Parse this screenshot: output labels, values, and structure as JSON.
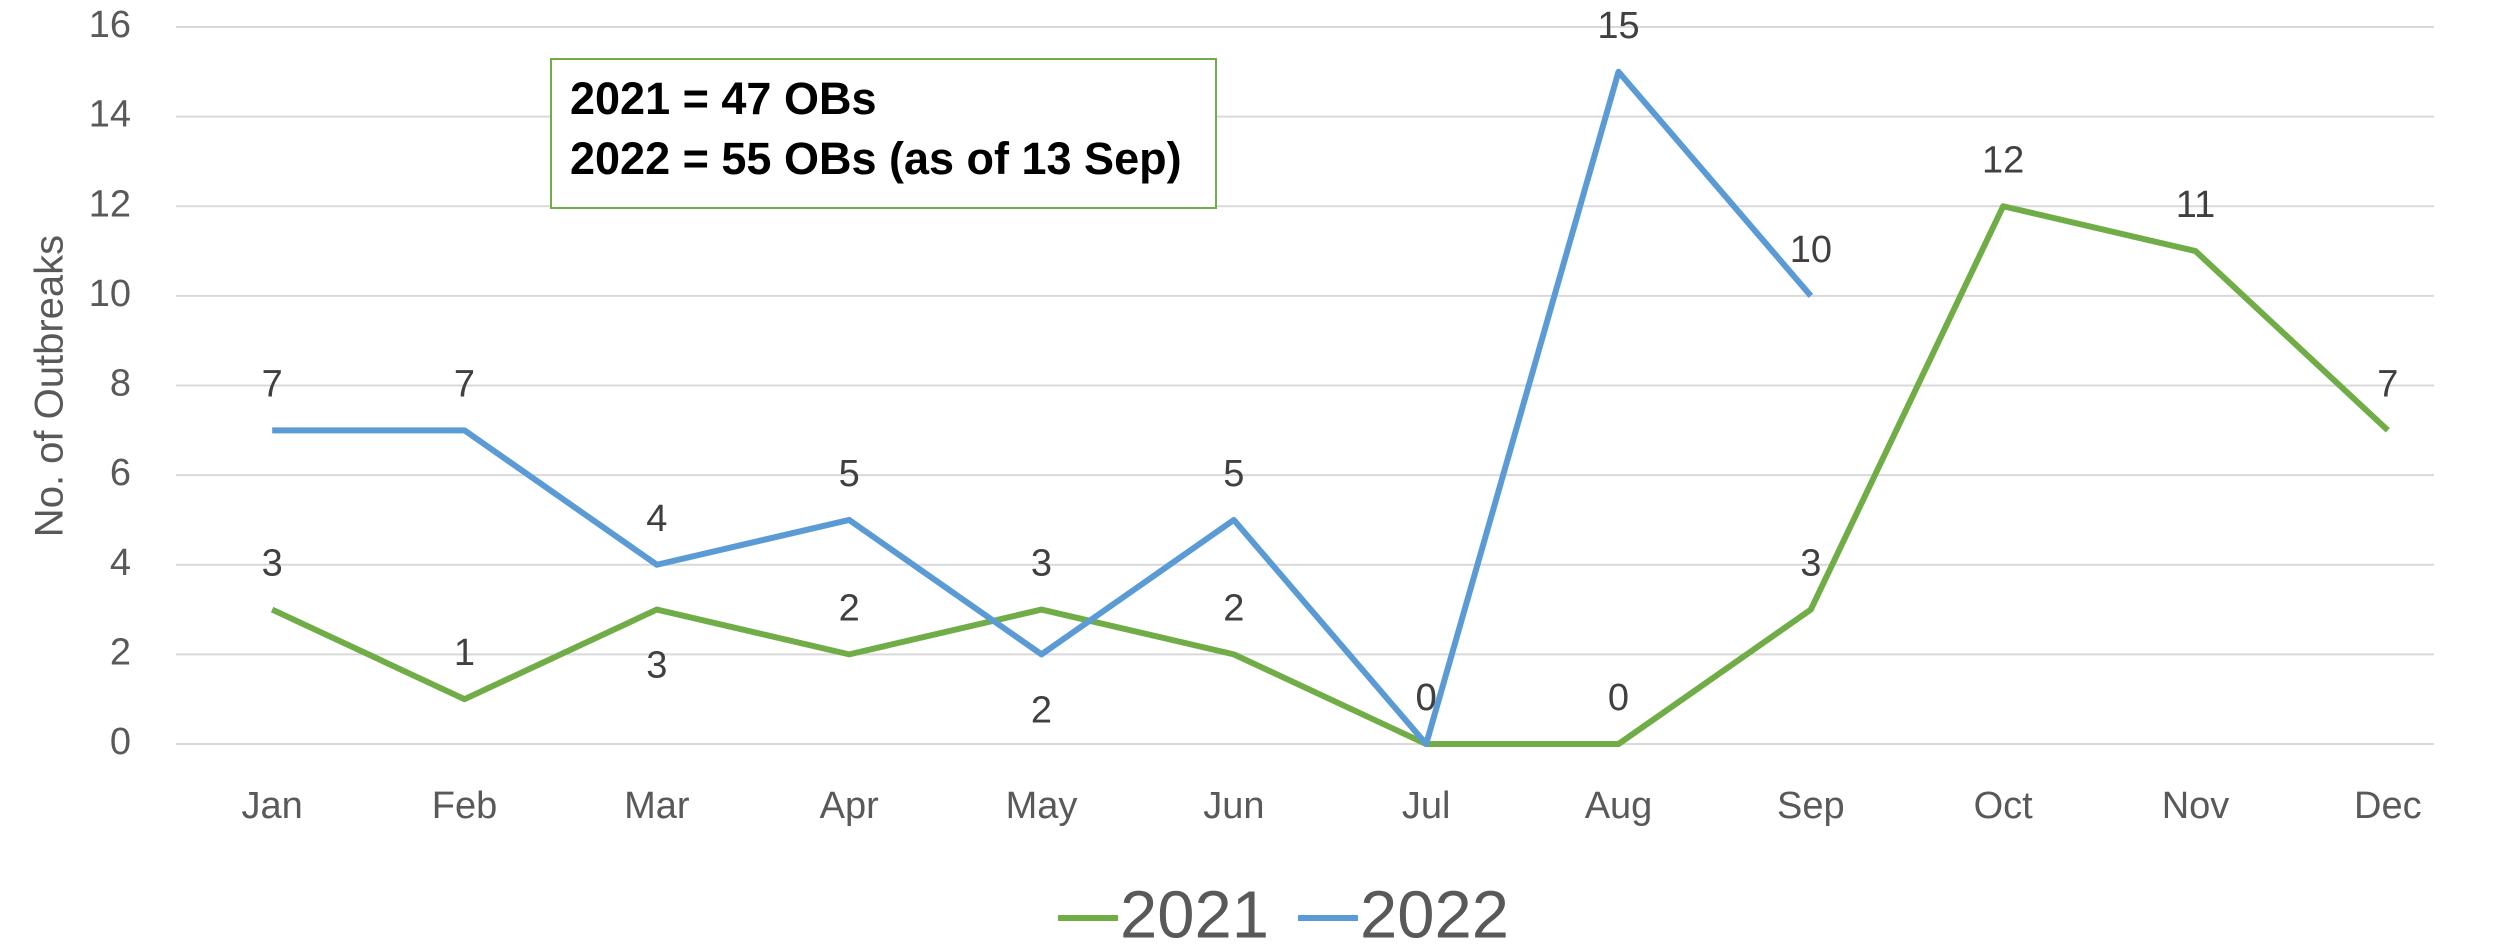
{
  "chart_data": {
    "type": "line",
    "y_label": "No. of Outbreaks",
    "annotations": [
      "2021 = 47 OBs",
      "2022 = 55 OBs (as of 13 Sep)"
    ],
    "categories": [
      "Jan",
      "Feb",
      "Mar",
      "Apr",
      "May",
      "Jun",
      "Jul",
      "Aug",
      "Sep",
      "Oct",
      "Nov",
      "Dec"
    ],
    "series": [
      {
        "name": "2021",
        "color": "#70ad47",
        "values": [
          3,
          1,
          3,
          2,
          3,
          2,
          0,
          0,
          3,
          12,
          11,
          7
        ]
      },
      {
        "name": "2022",
        "color": "#5b9bd5",
        "values": [
          7,
          7,
          4,
          5,
          2,
          5,
          0,
          15,
          10,
          null,
          null,
          null
        ]
      }
    ],
    "ylim": [
      0,
      16
    ],
    "yticks": [
      0,
      2,
      4,
      6,
      8,
      10,
      12,
      14,
      16
    ],
    "grid": true,
    "legend": "bottom"
  }
}
